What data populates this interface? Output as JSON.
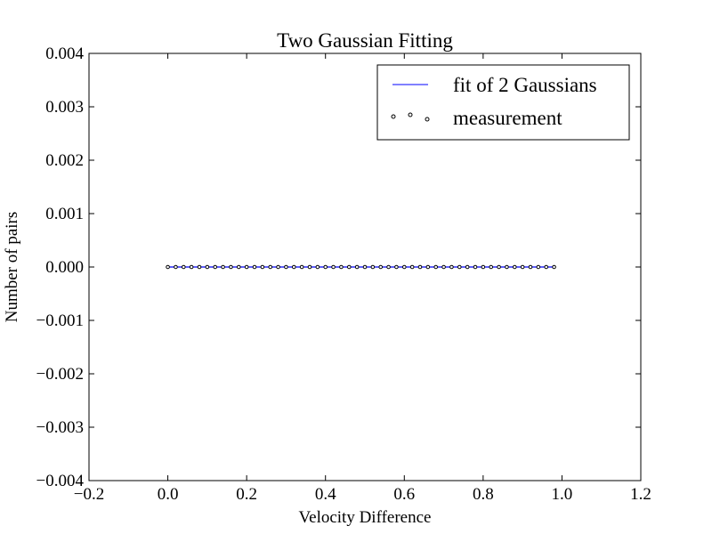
{
  "chart_data": {
    "type": "line",
    "title": "Two Gaussian Fitting",
    "xlabel": "Velocity Difference",
    "ylabel": "Number of pairs",
    "xlim": [
      -0.2,
      1.2
    ],
    "ylim": [
      -0.004,
      0.004
    ],
    "xticks": [
      -0.2,
      0.0,
      0.2,
      0.4,
      0.6,
      0.8,
      1.0,
      1.2
    ],
    "xtick_labels": [
      "−0.2",
      "0.0",
      "0.2",
      "0.4",
      "0.6",
      "0.8",
      "1.0",
      "1.2"
    ],
    "yticks": [
      -0.004,
      -0.003,
      -0.002,
      -0.001,
      0.0,
      0.001,
      0.002,
      0.003,
      0.004
    ],
    "ytick_labels": [
      "−0.004",
      "−0.003",
      "−0.002",
      "−0.001",
      "0.000",
      "0.001",
      "0.002",
      "0.003",
      "0.004"
    ],
    "grid": false,
    "legend_position": "top-right",
    "series": [
      {
        "name": "fit of 2 Gaussians",
        "style": "line",
        "color": "#0000ff",
        "x": [
          0.0,
          0.02,
          0.04,
          0.06,
          0.08,
          0.1,
          0.12,
          0.14,
          0.16,
          0.18,
          0.2,
          0.22,
          0.24,
          0.26,
          0.28,
          0.3,
          0.32,
          0.34,
          0.36,
          0.38,
          0.4,
          0.42,
          0.44,
          0.46,
          0.48,
          0.5,
          0.52,
          0.54,
          0.56,
          0.58,
          0.6,
          0.62,
          0.64,
          0.66,
          0.68,
          0.7,
          0.72,
          0.74,
          0.76,
          0.78,
          0.8,
          0.82,
          0.84,
          0.86,
          0.88,
          0.9,
          0.92,
          0.94,
          0.96,
          0.98
        ],
        "y": [
          0,
          0,
          0,
          0,
          0,
          0,
          0,
          0,
          0,
          0,
          0,
          0,
          0,
          0,
          0,
          0,
          0,
          0,
          0,
          0,
          0,
          0,
          0,
          0,
          0,
          0,
          0,
          0,
          0,
          0,
          0,
          0,
          0,
          0,
          0,
          0,
          0,
          0,
          0,
          0,
          0,
          0,
          0,
          0,
          0,
          0,
          0,
          0,
          0,
          0
        ]
      },
      {
        "name": "measurement",
        "style": "markers",
        "color": "#000000",
        "x": [
          0.0,
          0.02,
          0.04,
          0.06,
          0.08,
          0.1,
          0.12,
          0.14,
          0.16,
          0.18,
          0.2,
          0.22,
          0.24,
          0.26,
          0.28,
          0.3,
          0.32,
          0.34,
          0.36,
          0.38,
          0.4,
          0.42,
          0.44,
          0.46,
          0.48,
          0.5,
          0.52,
          0.54,
          0.56,
          0.58,
          0.6,
          0.62,
          0.64,
          0.66,
          0.68,
          0.7,
          0.72,
          0.74,
          0.76,
          0.78,
          0.8,
          0.82,
          0.84,
          0.86,
          0.88,
          0.9,
          0.92,
          0.94,
          0.96,
          0.98
        ],
        "y": [
          0,
          0,
          0,
          0,
          0,
          0,
          0,
          0,
          0,
          0,
          0,
          0,
          0,
          0,
          0,
          0,
          0,
          0,
          0,
          0,
          0,
          0,
          0,
          0,
          0,
          0,
          0,
          0,
          0,
          0,
          0,
          0,
          0,
          0,
          0,
          0,
          0,
          0,
          0,
          0,
          0,
          0,
          0,
          0,
          0,
          0,
          0,
          0,
          0,
          0
        ]
      }
    ]
  }
}
